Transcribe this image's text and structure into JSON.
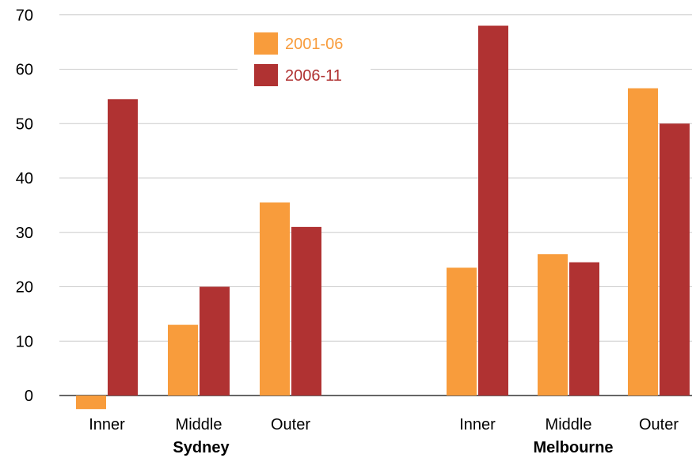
{
  "chart_data": {
    "type": "bar",
    "categories": [
      "Inner",
      "Middle",
      "Outer",
      "Inner",
      "Middle",
      "Outer"
    ],
    "groups": [
      {
        "label": "Sydney",
        "categories": [
          "Inner",
          "Middle",
          "Outer"
        ]
      },
      {
        "label": "Melbourne",
        "categories": [
          "Inner",
          "Middle",
          "Outer"
        ]
      }
    ],
    "series": [
      {
        "name": "2001-06",
        "color": "#f89c3c",
        "values": [
          -2.5,
          13,
          35.5,
          23.5,
          26,
          56.5
        ]
      },
      {
        "name": "2006-11",
        "color": "#b03232",
        "values": [
          54.5,
          20,
          31,
          68,
          24.5,
          50
        ]
      }
    ],
    "yticks": [
      0,
      10,
      20,
      30,
      40,
      50,
      60,
      70
    ],
    "ylim": [
      -3,
      70
    ],
    "grid": true,
    "legend": "top-center"
  }
}
